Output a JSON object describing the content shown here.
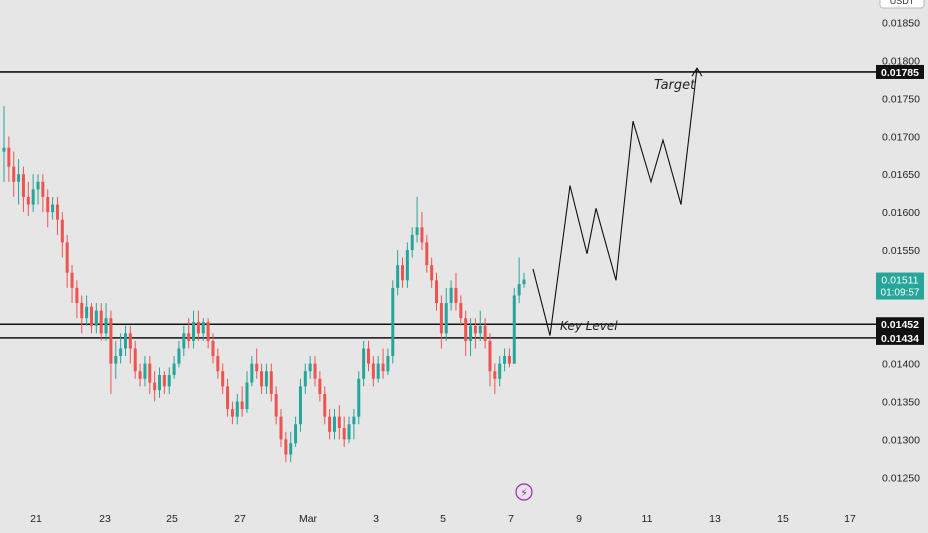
{
  "header": {
    "title_fragment": "",
    "top_right_label": "USDT"
  },
  "chart_data": {
    "type": "candlestick",
    "ylim": [
      0.0122,
      0.0188
    ],
    "y_ticks": [
      "0.01850",
      "0.01800",
      "0.01750",
      "0.01700",
      "0.01650",
      "0.01600",
      "0.01550",
      "0.01500",
      "0.01450",
      "0.01400",
      "0.01350",
      "0.01300",
      "0.01250"
    ],
    "x_ticks": [
      "21",
      "23",
      "25",
      "27",
      "Mar",
      "3",
      "5",
      "7",
      "9",
      "11",
      "13",
      "15",
      "17"
    ],
    "horizontal_levels": [
      {
        "price": 0.01785,
        "label": "0.01785"
      },
      {
        "price": 0.01452,
        "label": "0.01452"
      },
      {
        "price": 0.01434,
        "label": "0.01434"
      }
    ],
    "last_price": {
      "price": 0.01511,
      "label": "0.01511",
      "countdown": "01:09:57"
    },
    "annotations": {
      "target": "Target",
      "key_level": "Key Level"
    },
    "colors": {
      "up": "#26a69a",
      "down": "#ef5350",
      "background": "#e6e6e6",
      "line": "#111111",
      "current_badge": "#26a69a"
    },
    "candles": [
      [
        0.0168,
        0.01685,
        0.0174,
        0.0164
      ],
      [
        0.01685,
        0.0166,
        0.017,
        0.0164
      ],
      [
        0.0166,
        0.0164,
        0.0168,
        0.0162
      ],
      [
        0.0164,
        0.0165,
        0.0167,
        0.0161
      ],
      [
        0.0165,
        0.0162,
        0.0166,
        0.016
      ],
      [
        0.0162,
        0.0161,
        0.0164,
        0.01595
      ],
      [
        0.0161,
        0.0163,
        0.0165,
        0.016
      ],
      [
        0.0163,
        0.0164,
        0.0165,
        0.0161
      ],
      [
        0.0164,
        0.0162,
        0.0165,
        0.016
      ],
      [
        0.0162,
        0.016,
        0.0163,
        0.0158
      ],
      [
        0.016,
        0.0161,
        0.0162,
        0.0159
      ],
      [
        0.0161,
        0.0159,
        0.0162,
        0.0157
      ],
      [
        0.0159,
        0.0156,
        0.016,
        0.0154
      ],
      [
        0.0156,
        0.0152,
        0.0157,
        0.015
      ],
      [
        0.0152,
        0.015,
        0.0153,
        0.0148
      ],
      [
        0.015,
        0.0148,
        0.0151,
        0.0146
      ],
      [
        0.0148,
        0.0146,
        0.0149,
        0.0144
      ],
      [
        0.0146,
        0.01475,
        0.0149,
        0.0145
      ],
      [
        0.01475,
        0.0145,
        0.0148,
        0.0144
      ],
      [
        0.0145,
        0.0147,
        0.0148,
        0.0144
      ],
      [
        0.0147,
        0.0144,
        0.0148,
        0.0143
      ],
      [
        0.0144,
        0.0146,
        0.0148,
        0.0143
      ],
      [
        0.0146,
        0.014,
        0.0147,
        0.0136
      ],
      [
        0.014,
        0.0141,
        0.0143,
        0.0138
      ],
      [
        0.0141,
        0.0142,
        0.0144,
        0.014
      ],
      [
        0.0142,
        0.0144,
        0.0145,
        0.0141
      ],
      [
        0.0144,
        0.0142,
        0.0145,
        0.014
      ],
      [
        0.0142,
        0.0139,
        0.0143,
        0.0138
      ],
      [
        0.0139,
        0.0138,
        0.014,
        0.0137
      ],
      [
        0.0138,
        0.014,
        0.0141,
        0.0137
      ],
      [
        0.014,
        0.01375,
        0.0141,
        0.0136
      ],
      [
        0.01375,
        0.01365,
        0.0139,
        0.0135
      ],
      [
        0.01365,
        0.01385,
        0.01395,
        0.01355
      ],
      [
        0.01385,
        0.0137,
        0.0139,
        0.0136
      ],
      [
        0.0137,
        0.01385,
        0.01395,
        0.0136
      ],
      [
        0.01385,
        0.014,
        0.0141,
        0.0138
      ],
      [
        0.014,
        0.0142,
        0.0143,
        0.01395
      ],
      [
        0.0142,
        0.0144,
        0.0145,
        0.0141
      ],
      [
        0.0144,
        0.0143,
        0.0146,
        0.0142
      ],
      [
        0.0143,
        0.01455,
        0.0147,
        0.0142
      ],
      [
        0.01455,
        0.0144,
        0.0147,
        0.0143
      ],
      [
        0.0144,
        0.01455,
        0.0146,
        0.0143
      ],
      [
        0.01455,
        0.0143,
        0.0146,
        0.0142
      ],
      [
        0.0143,
        0.0141,
        0.0144,
        0.014
      ],
      [
        0.0141,
        0.0139,
        0.0142,
        0.0138
      ],
      [
        0.0139,
        0.0137,
        0.014,
        0.0136
      ],
      [
        0.0137,
        0.0134,
        0.0138,
        0.0133
      ],
      [
        0.0134,
        0.0133,
        0.0135,
        0.0132
      ],
      [
        0.0133,
        0.0135,
        0.0136,
        0.0132
      ],
      [
        0.0135,
        0.0134,
        0.0137,
        0.0133
      ],
      [
        0.0134,
        0.01375,
        0.0139,
        0.01335
      ],
      [
        0.01375,
        0.014,
        0.0141,
        0.0137
      ],
      [
        0.014,
        0.0139,
        0.0142,
        0.0138
      ],
      [
        0.0139,
        0.0137,
        0.014,
        0.0136
      ],
      [
        0.0137,
        0.0139,
        0.014,
        0.0136
      ],
      [
        0.0139,
        0.0136,
        0.014,
        0.0135
      ],
      [
        0.0136,
        0.0133,
        0.0137,
        0.0132
      ],
      [
        0.0133,
        0.013,
        0.0134,
        0.0129
      ],
      [
        0.013,
        0.0128,
        0.0131,
        0.0127
      ],
      [
        0.0128,
        0.01295,
        0.0131,
        0.0127
      ],
      [
        0.01295,
        0.0132,
        0.0133,
        0.0129
      ],
      [
        0.0132,
        0.0137,
        0.0138,
        0.0131
      ],
      [
        0.0137,
        0.0139,
        0.014,
        0.0136
      ],
      [
        0.0139,
        0.014,
        0.0141,
        0.0138
      ],
      [
        0.014,
        0.0138,
        0.0141,
        0.0137
      ],
      [
        0.0138,
        0.0136,
        0.0139,
        0.0135
      ],
      [
        0.0136,
        0.0133,
        0.0137,
        0.0132
      ],
      [
        0.0133,
        0.0131,
        0.0134,
        0.013
      ],
      [
        0.0131,
        0.0133,
        0.0134,
        0.013
      ],
      [
        0.0133,
        0.01315,
        0.01345,
        0.013
      ],
      [
        0.01315,
        0.013,
        0.0133,
        0.0129
      ],
      [
        0.013,
        0.0132,
        0.0133,
        0.01295
      ],
      [
        0.0132,
        0.0133,
        0.0134,
        0.013
      ],
      [
        0.0133,
        0.0138,
        0.0139,
        0.0132
      ],
      [
        0.0138,
        0.0142,
        0.0143,
        0.0137
      ],
      [
        0.0142,
        0.014,
        0.0143,
        0.0139
      ],
      [
        0.014,
        0.0138,
        0.0141,
        0.0137
      ],
      [
        0.0138,
        0.014,
        0.0141,
        0.01375
      ],
      [
        0.014,
        0.0139,
        0.0142,
        0.0138
      ],
      [
        0.0139,
        0.0141,
        0.0142,
        0.01385
      ],
      [
        0.0141,
        0.015,
        0.0151,
        0.014
      ],
      [
        0.015,
        0.0153,
        0.0155,
        0.0149
      ],
      [
        0.0153,
        0.0151,
        0.0154,
        0.015
      ],
      [
        0.0151,
        0.0155,
        0.0156,
        0.015
      ],
      [
        0.0155,
        0.0157,
        0.0158,
        0.0154
      ],
      [
        0.0157,
        0.0158,
        0.0162,
        0.0156
      ],
      [
        0.0158,
        0.0156,
        0.016,
        0.0155
      ],
      [
        0.0156,
        0.0153,
        0.0157,
        0.0152
      ],
      [
        0.0153,
        0.0151,
        0.0154,
        0.015
      ],
      [
        0.0151,
        0.0148,
        0.0152,
        0.0147
      ],
      [
        0.0148,
        0.0144,
        0.0149,
        0.0142
      ],
      [
        0.0144,
        0.0148,
        0.015,
        0.0143
      ],
      [
        0.0148,
        0.015,
        0.0151,
        0.0147
      ],
      [
        0.015,
        0.0148,
        0.0152,
        0.0147
      ],
      [
        0.0148,
        0.0146,
        0.0149,
        0.0145
      ],
      [
        0.0146,
        0.0143,
        0.0147,
        0.0141
      ],
      [
        0.0143,
        0.0145,
        0.0146,
        0.0141
      ],
      [
        0.0145,
        0.0144,
        0.0146,
        0.0142
      ],
      [
        0.0144,
        0.0145,
        0.0147,
        0.0143
      ],
      [
        0.0145,
        0.0143,
        0.0146,
        0.0142
      ],
      [
        0.0143,
        0.0139,
        0.0144,
        0.0137
      ],
      [
        0.0139,
        0.0138,
        0.014,
        0.0136
      ],
      [
        0.0138,
        0.014,
        0.0141,
        0.0137
      ],
      [
        0.014,
        0.0141,
        0.0142,
        0.0139
      ],
      [
        0.0141,
        0.014,
        0.0142,
        0.01395
      ],
      [
        0.014,
        0.0149,
        0.015,
        0.014
      ],
      [
        0.0149,
        0.01505,
        0.0154,
        0.0148
      ],
      [
        0.01505,
        0.01511,
        0.0152,
        0.015
      ]
    ],
    "projection": [
      [
        0.01525,
        0.01525
      ],
      [
        0.01437,
        0.01437
      ],
      [
        0.01635,
        0.01635
      ],
      [
        0.01545,
        0.01545
      ],
      [
        0.01605,
        0.01605
      ],
      [
        0.0151,
        0.0151
      ],
      [
        0.0172,
        0.0172
      ],
      [
        0.0164,
        0.0164
      ],
      [
        0.01695,
        0.01695
      ],
      [
        0.0161,
        0.0161
      ],
      [
        0.0179,
        0.0179
      ]
    ]
  }
}
